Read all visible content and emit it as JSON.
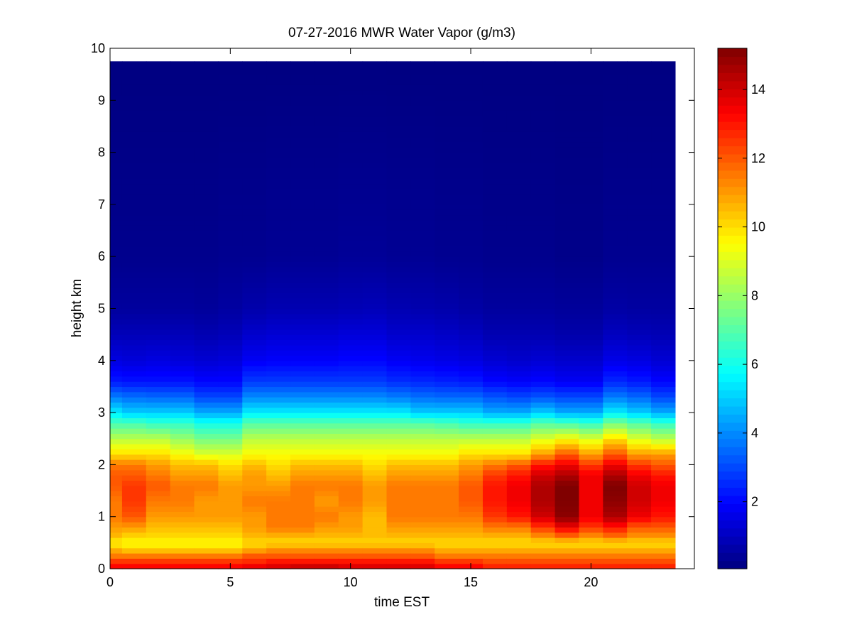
{
  "chart_data": {
    "type": "heatmap",
    "title": "07-27-2016 MWR Water Vapor (g/m3)",
    "xlabel": "time EST",
    "ylabel": "height km",
    "xlim": [
      0,
      24.3
    ],
    "ylim": [
      0,
      10
    ],
    "x_ticks": [
      0,
      5,
      10,
      15,
      20
    ],
    "y_ticks": [
      0,
      1,
      2,
      3,
      4,
      5,
      6,
      7,
      8,
      9,
      10
    ],
    "colorbar": {
      "colormap": "jet",
      "range": [
        0.05,
        15.2
      ],
      "ticks": [
        2,
        4,
        6,
        8,
        10,
        12,
        14
      ]
    },
    "grid": false,
    "data_extent": {
      "x": [
        0,
        23.5
      ],
      "y": [
        0,
        9.75
      ]
    },
    "time_hours": [
      0.5,
      1.5,
      2.5,
      3.5,
      4.5,
      5.5,
      6.5,
      7.5,
      8.5,
      9.5,
      10.5,
      11.5,
      12.5,
      13.5,
      14.5,
      15.5,
      16.5,
      17.5,
      18.5,
      19.5,
      20.5,
      21.5,
      22.5,
      23.5
    ],
    "profile_nodes_km": [
      0,
      0.1,
      0.25,
      0.4,
      0.5,
      0.6,
      0.8,
      1.0,
      1.3,
      1.6,
      1.8,
      2.0,
      2.2,
      2.5,
      2.8,
      3.0,
      3.3,
      3.6,
      4.0,
      4.5,
      5.0,
      6.0,
      9.75
    ],
    "column_profiles": [
      [
        13.5,
        13.0,
        11.5,
        10.5,
        9.5,
        10.5,
        11.0,
        11.5,
        11.5,
        12.0,
        12.0,
        11.5,
        10.0,
        8.5,
        6.8,
        5.5,
        3.8,
        2.3,
        1.5,
        0.9,
        0.5,
        0.25,
        0.08
      ],
      [
        13.5,
        13.0,
        11.5,
        10.0,
        9.5,
        10.0,
        11.0,
        12.0,
        12.5,
        12.5,
        12.0,
        11.5,
        10.0,
        8.5,
        6.8,
        5.0,
        3.6,
        2.2,
        1.4,
        0.9,
        0.5,
        0.25,
        0.08
      ],
      [
        13.5,
        13.0,
        11.5,
        10.0,
        9.5,
        10.0,
        10.5,
        11.0,
        11.5,
        12.0,
        11.5,
        11.0,
        10.0,
        8.5,
        6.5,
        5.0,
        3.5,
        2.2,
        1.5,
        0.9,
        0.5,
        0.25,
        0.08
      ],
      [
        13.5,
        13.0,
        11.5,
        10.0,
        9.5,
        10.0,
        10.5,
        11.0,
        11.5,
        11.5,
        11.0,
        10.5,
        9.5,
        8.0,
        6.5,
        5.0,
        3.5,
        2.2,
        1.4,
        0.9,
        0.5,
        0.25,
        0.08
      ],
      [
        13.5,
        13.0,
        11.5,
        10.0,
        9.5,
        10.0,
        10.5,
        11.0,
        11.0,
        11.5,
        11.0,
        10.5,
        9.0,
        7.5,
        6.0,
        4.5,
        3.0,
        2.0,
        1.3,
        0.8,
        0.45,
        0.25,
        0.08
      ],
      [
        13.5,
        13.0,
        11.5,
        10.0,
        9.5,
        10.0,
        10.5,
        11.0,
        11.0,
        11.0,
        10.5,
        10.0,
        9.0,
        7.5,
        6.0,
        4.5,
        3.0,
        2.0,
        1.4,
        0.9,
        0.55,
        0.3,
        0.08
      ],
      [
        14.0,
        13.0,
        12.0,
        10.5,
        10.0,
        10.5,
        11.0,
        11.0,
        11.5,
        11.0,
        11.0,
        10.5,
        9.5,
        8.5,
        7.0,
        5.5,
        4.0,
        2.8,
        1.8,
        1.2,
        0.7,
        0.3,
        0.08
      ],
      [
        14.0,
        13.5,
        12.0,
        11.0,
        10.0,
        10.5,
        11.5,
        11.5,
        11.5,
        11.0,
        10.5,
        10.0,
        9.5,
        8.5,
        7.0,
        5.5,
        4.0,
        2.8,
        1.9,
        1.3,
        0.8,
        0.35,
        0.08
      ],
      [
        14.5,
        13.5,
        12.0,
        11.0,
        10.0,
        10.5,
        11.5,
        11.5,
        11.5,
        11.5,
        11.0,
        10.5,
        9.5,
        8.5,
        7.0,
        5.5,
        4.0,
        2.8,
        1.9,
        1.3,
        0.8,
        0.35,
        0.08
      ],
      [
        14.5,
        13.5,
        12.0,
        11.0,
        10.0,
        10.5,
        11.0,
        11.5,
        11.0,
        11.5,
        11.0,
        10.5,
        9.5,
        8.5,
        7.0,
        5.5,
        4.0,
        2.8,
        1.9,
        1.3,
        0.8,
        0.35,
        0.08
      ],
      [
        14.0,
        13.5,
        12.0,
        11.0,
        10.0,
        10.5,
        11.0,
        11.0,
        11.5,
        11.5,
        11.0,
        10.5,
        9.5,
        8.5,
        7.0,
        5.5,
        4.0,
        2.8,
        2.0,
        1.4,
        0.85,
        0.4,
        0.08
      ],
      [
        14.0,
        13.5,
        12.0,
        11.0,
        10.0,
        10.5,
        10.5,
        10.5,
        11.0,
        11.0,
        10.5,
        10.0,
        9.5,
        8.5,
        7.0,
        5.5,
        4.0,
        2.8,
        2.0,
        1.4,
        0.9,
        0.4,
        0.08
      ],
      [
        14.0,
        13.5,
        12.0,
        11.0,
        10.0,
        10.5,
        11.0,
        11.5,
        11.5,
        11.5,
        11.0,
        10.5,
        9.5,
        8.5,
        7.0,
        5.5,
        3.8,
        2.6,
        1.8,
        1.2,
        0.8,
        0.35,
        0.08
      ],
      [
        14.0,
        13.5,
        12.0,
        11.0,
        10.0,
        10.5,
        11.0,
        11.5,
        11.5,
        11.5,
        11.0,
        10.5,
        9.5,
        8.5,
        7.0,
        5.0,
        3.6,
        2.5,
        1.7,
        1.2,
        0.75,
        0.35,
        0.08
      ],
      [
        13.5,
        13.0,
        11.5,
        10.5,
        10.0,
        10.5,
        11.0,
        11.5,
        11.5,
        11.5,
        11.0,
        10.5,
        9.5,
        8.5,
        6.8,
        5.0,
        3.5,
        2.4,
        1.6,
        1.1,
        0.7,
        0.3,
        0.08
      ],
      [
        13.5,
        13.0,
        11.5,
        10.5,
        10.0,
        10.5,
        11.0,
        11.5,
        12.0,
        12.0,
        11.5,
        11.0,
        10.0,
        8.5,
        6.5,
        5.0,
        3.5,
        2.3,
        1.5,
        1.0,
        0.6,
        0.3,
        0.08
      ],
      [
        13.0,
        12.5,
        11.5,
        10.5,
        10.0,
        10.5,
        11.5,
        12.5,
        13.0,
        13.0,
        12.5,
        11.5,
        10.0,
        8.5,
        6.5,
        4.5,
        3.2,
        2.0,
        1.3,
        0.8,
        0.5,
        0.25,
        0.08
      ],
      [
        13.0,
        12.5,
        11.5,
        10.5,
        10.0,
        10.5,
        11.5,
        13.0,
        13.5,
        13.5,
        13.0,
        12.0,
        10.0,
        8.5,
        6.5,
        4.5,
        3.0,
        1.9,
        1.2,
        0.8,
        0.5,
        0.25,
        0.08
      ],
      [
        13.0,
        12.5,
        11.5,
        10.5,
        10.0,
        11.0,
        12.5,
        14.0,
        14.5,
        14.5,
        14.0,
        13.0,
        11.0,
        9.0,
        7.0,
        5.0,
        3.2,
        2.0,
        1.3,
        0.8,
        0.5,
        0.25,
        0.08
      ],
      [
        13.0,
        12.5,
        11.5,
        10.5,
        10.0,
        11.5,
        13.5,
        15.0,
        15.2,
        15.2,
        14.5,
        13.5,
        12.0,
        9.5,
        6.8,
        4.5,
        3.0,
        1.8,
        1.2,
        0.7,
        0.45,
        0.2,
        0.08
      ],
      [
        13.0,
        12.5,
        11.5,
        10.5,
        10.0,
        11.0,
        12.5,
        13.5,
        13.5,
        13.5,
        13.5,
        12.5,
        11.0,
        9.0,
        6.5,
        4.5,
        3.0,
        1.8,
        1.2,
        0.7,
        0.45,
        0.2,
        0.08
      ],
      [
        13.0,
        12.5,
        11.5,
        10.5,
        10.0,
        11.5,
        13.0,
        14.5,
        15.0,
        15.2,
        14.5,
        13.5,
        12.0,
        10.0,
        7.5,
        5.5,
        3.8,
        2.5,
        1.6,
        1.0,
        0.6,
        0.3,
        0.08
      ],
      [
        13.0,
        12.5,
        11.5,
        10.5,
        10.0,
        11.0,
        12.0,
        13.5,
        14.0,
        14.0,
        13.5,
        12.5,
        11.0,
        9.0,
        7.0,
        5.0,
        3.5,
        2.3,
        1.5,
        0.9,
        0.55,
        0.3,
        0.08
      ],
      [
        13.0,
        12.5,
        11.5,
        10.5,
        10.0,
        11.0,
        12.0,
        13.0,
        13.5,
        13.5,
        13.0,
        12.0,
        11.0,
        8.5,
        6.5,
        4.5,
        3.0,
        2.0,
        1.3,
        0.85,
        0.55,
        0.3,
        0.08
      ]
    ]
  }
}
